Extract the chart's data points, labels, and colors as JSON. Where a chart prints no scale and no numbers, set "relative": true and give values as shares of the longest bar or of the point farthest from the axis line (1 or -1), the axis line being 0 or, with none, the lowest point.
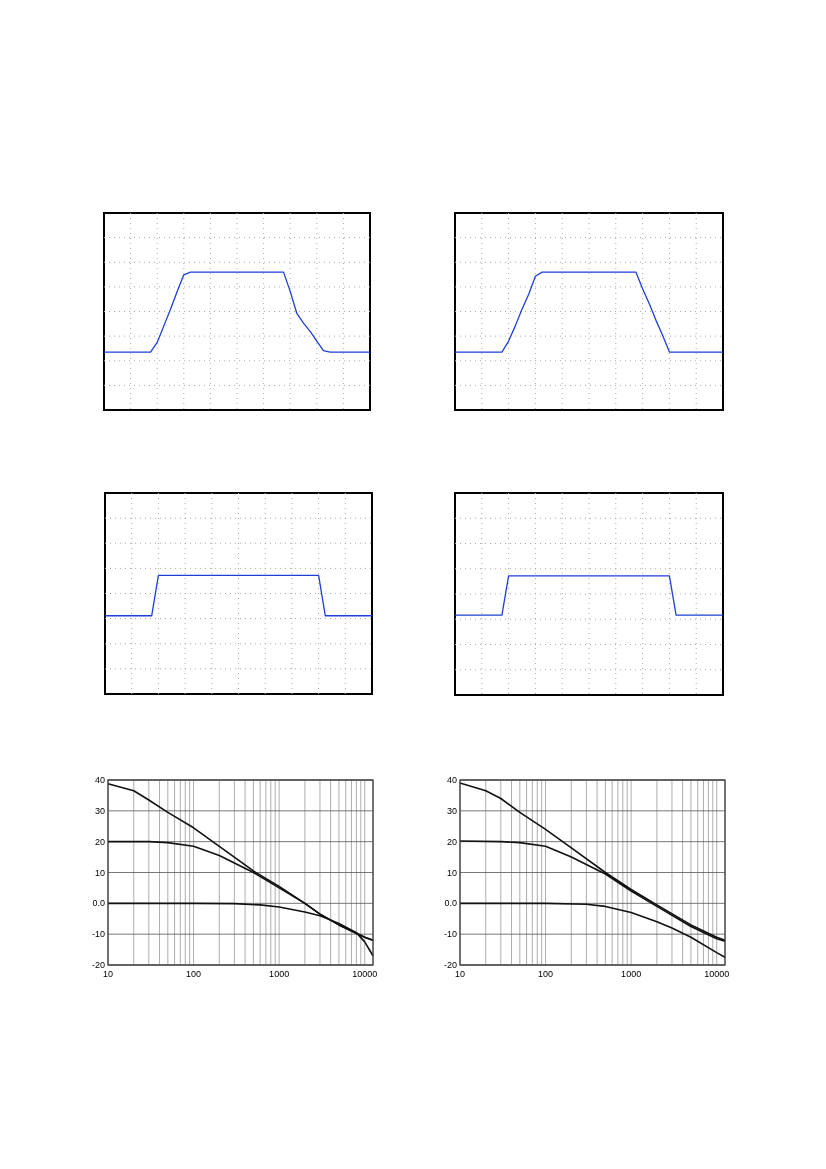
{
  "chart_data": [
    {
      "type": "line",
      "relative": true,
      "grid": true,
      "categories": [
        null,
        null,
        null,
        null,
        null,
        null,
        null,
        null,
        null,
        null,
        null,
        null,
        null,
        null,
        null,
        null,
        null,
        null,
        null,
        null,
        null,
        null,
        null,
        null,
        null,
        null,
        null,
        null,
        null,
        null,
        null,
        null,
        null,
        null,
        null,
        null,
        null,
        null,
        null,
        null,
        null
      ],
      "series": [
        {
          "color": "#1f3fd6",
          "values": [
            0.42,
            0.42,
            0.42,
            0.42,
            0.42,
            0.42,
            0.42,
            0.42,
            0.49,
            0.61,
            0.73,
            0.86,
            0.98,
            1,
            1,
            1,
            1,
            1,
            1,
            1,
            1,
            1,
            1,
            1,
            1,
            1,
            1,
            1,
            0.86,
            0.7,
            0.63,
            0.57,
            0.5,
            0.43,
            0.42,
            0.42,
            0.42,
            0.42,
            0.42,
            0.42,
            0.42
          ]
        }
      ]
    },
    {
      "type": "line",
      "relative": true,
      "grid": true,
      "categories": [
        null,
        null,
        null,
        null,
        null,
        null,
        null,
        null,
        null,
        null,
        null,
        null,
        null,
        null,
        null,
        null,
        null,
        null,
        null,
        null,
        null,
        null,
        null,
        null,
        null,
        null,
        null,
        null,
        null,
        null,
        null,
        null,
        null,
        null,
        null,
        null,
        null,
        null,
        null,
        null,
        null
      ],
      "series": [
        {
          "color": "#1f3fd6",
          "values": [
            0.42,
            0.42,
            0.42,
            0.42,
            0.42,
            0.42,
            0.42,
            0.42,
            0.5,
            0.61,
            0.73,
            0.84,
            0.97,
            1,
            1,
            1,
            1,
            1,
            1,
            1,
            1,
            1,
            1,
            1,
            1,
            1,
            1,
            1,
            0.88,
            0.77,
            0.65,
            0.54,
            0.42,
            0.42,
            0.42,
            0.42,
            0.42,
            0.42,
            0.42,
            0.42,
            0.42
          ]
        }
      ]
    },
    {
      "type": "line",
      "relative": true,
      "grid": true,
      "categories": [
        null,
        null,
        null,
        null,
        null,
        null,
        null,
        null,
        null,
        null,
        null,
        null,
        null,
        null,
        null,
        null,
        null,
        null,
        null,
        null,
        null,
        null,
        null,
        null,
        null,
        null,
        null,
        null,
        null,
        null,
        null,
        null,
        null,
        null,
        null,
        null,
        null,
        null,
        null,
        null,
        null
      ],
      "series": [
        {
          "color": "#1f3fd6",
          "values": [
            0.66,
            0.66,
            0.66,
            0.66,
            0.66,
            0.66,
            0.66,
            0.66,
            1,
            1,
            1,
            1,
            1,
            1,
            1,
            1,
            1,
            1,
            1,
            1,
            1,
            1,
            1,
            1,
            1,
            1,
            1,
            1,
            1,
            1,
            1,
            1,
            1,
            0.66,
            0.66,
            0.66,
            0.66,
            0.66,
            0.66,
            0.66,
            0.66
          ]
        }
      ]
    },
    {
      "type": "line",
      "relative": true,
      "grid": true,
      "categories": [
        null,
        null,
        null,
        null,
        null,
        null,
        null,
        null,
        null,
        null,
        null,
        null,
        null,
        null,
        null,
        null,
        null,
        null,
        null,
        null,
        null,
        null,
        null,
        null,
        null,
        null,
        null,
        null,
        null,
        null,
        null,
        null,
        null,
        null,
        null,
        null,
        null,
        null,
        null,
        null,
        null
      ],
      "series": [
        {
          "color": "#1f3fd6",
          "values": [
            0.67,
            0.67,
            0.67,
            0.67,
            0.67,
            0.67,
            0.67,
            0.67,
            1,
            1,
            1,
            1,
            1,
            1,
            1,
            1,
            1,
            1,
            1,
            1,
            1,
            1,
            1,
            1,
            1,
            1,
            1,
            1,
            1,
            1,
            1,
            1,
            1,
            0.67,
            0.67,
            0.67,
            0.67,
            0.67,
            0.67,
            0.67,
            0.67
          ]
        }
      ]
    },
    {
      "type": "line",
      "log": "x",
      "grid": true,
      "xlim": [
        10,
        12500
      ],
      "ylim": [
        -20,
        40
      ],
      "xticks": [
        {
          "value": 10,
          "label": "10"
        },
        {
          "value": 20,
          "label": null
        },
        {
          "value": 30,
          "label": null
        },
        {
          "value": 40,
          "label": null
        },
        {
          "value": 50,
          "label": null
        },
        {
          "value": 60,
          "label": null
        },
        {
          "value": 70,
          "label": null
        },
        {
          "value": 80,
          "label": null
        },
        {
          "value": 90,
          "label": null
        },
        {
          "value": 100,
          "label": "100"
        },
        {
          "value": 200,
          "label": null
        },
        {
          "value": 300,
          "label": null
        },
        {
          "value": 400,
          "label": null
        },
        {
          "value": 500,
          "label": null
        },
        {
          "value": 600,
          "label": null
        },
        {
          "value": 700,
          "label": null
        },
        {
          "value": 800,
          "label": null
        },
        {
          "value": 900,
          "label": null
        },
        {
          "value": 1000,
          "label": "1000"
        },
        {
          "value": 2000,
          "label": null
        },
        {
          "value": 3000,
          "label": null
        },
        {
          "value": 4000,
          "label": null
        },
        {
          "value": 5000,
          "label": null
        },
        {
          "value": 6000,
          "label": null
        },
        {
          "value": 7000,
          "label": null
        },
        {
          "value": 8000,
          "label": null
        },
        {
          "value": 9000,
          "label": null
        },
        {
          "value": 10000,
          "label": "10000"
        }
      ],
      "yticks": [
        40,
        30,
        20,
        10,
        {
          "value": 0,
          "label": "0.0"
        },
        -10,
        -20
      ],
      "series": [
        {
          "color": "#111111",
          "x": [
            10,
            20,
            30,
            50,
            100,
            200,
            500,
            1000,
            2000,
            3000,
            5000,
            10000,
            12500
          ],
          "values": [
            38.8,
            36.5,
            33.5,
            29.5,
            24.5,
            18.5,
            10.5,
            5.5,
            0,
            -3.5,
            -7,
            -11,
            -12
          ]
        },
        {
          "color": "#111111",
          "x": [
            10,
            30,
            50,
            100,
            200,
            500,
            1000,
            2000,
            3000,
            5000,
            10000,
            12500
          ],
          "values": [
            20,
            20,
            19.7,
            18.5,
            15.5,
            10,
            5,
            0,
            -3.5,
            -7,
            -11,
            -12
          ]
        },
        {
          "color": "#111111",
          "x": [
            10,
            100,
            300,
            600,
            1000,
            2000,
            3000,
            5000,
            8000,
            10000,
            12500
          ],
          "values": [
            0,
            0,
            -0.1,
            -0.5,
            -1.2,
            -2.8,
            -4,
            -6.5,
            -9.5,
            -12.5,
            -17
          ]
        }
      ]
    },
    {
      "type": "line",
      "log": "x",
      "grid": true,
      "xlim": [
        10,
        12500
      ],
      "ylim": [
        -20,
        40
      ],
      "xticks": [
        {
          "value": 10,
          "label": "10"
        },
        {
          "value": 20,
          "label": null
        },
        {
          "value": 30,
          "label": null
        },
        {
          "value": 40,
          "label": null
        },
        {
          "value": 50,
          "label": null
        },
        {
          "value": 60,
          "label": null
        },
        {
          "value": 70,
          "label": null
        },
        {
          "value": 80,
          "label": null
        },
        {
          "value": 90,
          "label": null
        },
        {
          "value": 100,
          "label": "100"
        },
        {
          "value": 200,
          "label": null
        },
        {
          "value": 300,
          "label": null
        },
        {
          "value": 400,
          "label": null
        },
        {
          "value": 500,
          "label": null
        },
        {
          "value": 600,
          "label": null
        },
        {
          "value": 700,
          "label": null
        },
        {
          "value": 800,
          "label": null
        },
        {
          "value": 900,
          "label": null
        },
        {
          "value": 1000,
          "label": "1000"
        },
        {
          "value": 2000,
          "label": null
        },
        {
          "value": 3000,
          "label": null
        },
        {
          "value": 4000,
          "label": null
        },
        {
          "value": 5000,
          "label": null
        },
        {
          "value": 6000,
          "label": null
        },
        {
          "value": 7000,
          "label": null
        },
        {
          "value": 8000,
          "label": null
        },
        {
          "value": 9000,
          "label": null
        },
        {
          "value": 10000,
          "label": "10000"
        }
      ],
      "yticks": [
        40,
        30,
        20,
        10,
        {
          "value": 0,
          "label": "0.0"
        },
        -10,
        -20
      ],
      "series": [
        {
          "color": "#111111",
          "x": [
            10,
            20,
            30,
            50,
            100,
            200,
            500,
            1000,
            2000,
            5000,
            10000,
            12500
          ],
          "values": [
            39,
            36.5,
            34,
            29.5,
            24,
            18,
            10,
            4.5,
            -0.5,
            -7,
            -11,
            -12
          ]
        },
        {
          "color": "#111111",
          "x": [
            10,
            30,
            50,
            100,
            200,
            500,
            1000,
            2000,
            5000,
            10000,
            12500
          ],
          "values": [
            20.2,
            20,
            19.7,
            18.5,
            15,
            9.5,
            4,
            -1,
            -7.5,
            -11.5,
            -12.3
          ]
        },
        {
          "color": "#111111",
          "x": [
            10,
            100,
            300,
            500,
            1000,
            2000,
            3000,
            5000,
            10000,
            12500
          ],
          "values": [
            0,
            0,
            -0.3,
            -1,
            -3,
            -6,
            -8,
            -11,
            -16,
            -17.5
          ]
        }
      ]
    }
  ]
}
